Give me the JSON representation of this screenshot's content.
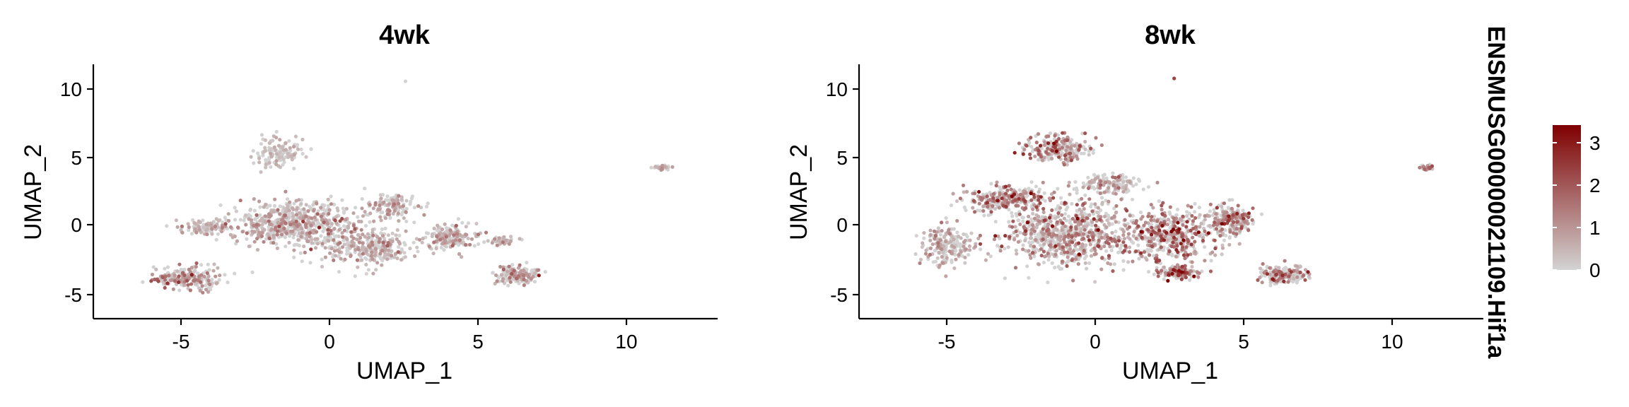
{
  "chart_data": [
    {
      "type": "scatter",
      "title": "4wk",
      "xlabel": "UMAP_1",
      "ylabel": "UMAP_2",
      "xlim": [
        -8.0,
        13.0
      ],
      "ylim": [
        -6.5,
        11.5
      ],
      "xticks": [
        "-5",
        "0",
        "5",
        "10"
      ],
      "yticks": [
        "-5",
        "0",
        "5",
        "10"
      ],
      "grid": false,
      "n_points": 1900,
      "seed": 11,
      "expr_scale": 0.8,
      "clusters": [
        {
          "cx": -1.2,
          "cy": 0.2,
          "sx": 1.9,
          "sy": 1.4,
          "w": 0.3,
          "expr": 0.9
        },
        {
          "cx": 1.3,
          "cy": -1.5,
          "sx": 1.3,
          "sy": 1.1,
          "w": 0.14,
          "expr": 0.8
        },
        {
          "cx": -4.8,
          "cy": -3.6,
          "sx": 1.0,
          "sy": 0.8,
          "w": 0.11,
          "expr": 1.1
        },
        {
          "cx": -4.2,
          "cy": 0.0,
          "sx": 0.8,
          "sy": 0.5,
          "w": 0.05,
          "expr": 0.6
        },
        {
          "cx": -1.7,
          "cy": 5.3,
          "sx": 0.8,
          "sy": 1.0,
          "w": 0.06,
          "expr": 0.3
        },
        {
          "cx": 4.0,
          "cy": -0.8,
          "sx": 0.8,
          "sy": 0.8,
          "w": 0.08,
          "expr": 0.8
        },
        {
          "cx": 6.3,
          "cy": -3.4,
          "sx": 0.7,
          "sy": 0.5,
          "w": 0.08,
          "expr": 1.0
        },
        {
          "cx": 2.0,
          "cy": 1.5,
          "sx": 0.8,
          "sy": 0.8,
          "w": 0.06,
          "expr": 0.8
        },
        {
          "cx": 5.8,
          "cy": -1.0,
          "sx": 0.4,
          "sy": 0.3,
          "w": 0.02,
          "expr": 0.5
        },
        {
          "cx": 11.1,
          "cy": 4.2,
          "sx": 0.2,
          "sy": 0.15,
          "w": 0.015,
          "expr": 0.7
        }
      ],
      "outliers": [
        [
          2.5,
          10.3,
          0.0
        ]
      ]
    },
    {
      "type": "scatter",
      "title": "8wk",
      "xlabel": "UMAP_1",
      "ylabel": "UMAP_2",
      "xlim": [
        -8.0,
        13.0
      ],
      "ylim": [
        -6.5,
        11.5
      ],
      "xticks": [
        "-5",
        "0",
        "5",
        "10"
      ],
      "yticks": [
        "-5",
        "0",
        "5",
        "10"
      ],
      "grid": false,
      "n_points": 2600,
      "seed": 29,
      "expr_scale": 1.1,
      "clusters": [
        {
          "cx": -1.0,
          "cy": -0.5,
          "sx": 2.2,
          "sy": 2.0,
          "w": 0.28,
          "expr": 1.0
        },
        {
          "cx": 2.5,
          "cy": -0.5,
          "sx": 1.3,
          "sy": 1.6,
          "w": 0.16,
          "expr": 1.2
        },
        {
          "cx": -1.3,
          "cy": 5.5,
          "sx": 1.0,
          "sy": 0.9,
          "w": 0.09,
          "expr": 1.2
        },
        {
          "cx": -3.0,
          "cy": 2.0,
          "sx": 1.3,
          "sy": 0.8,
          "w": 0.1,
          "expr": 1.0
        },
        {
          "cx": 4.5,
          "cy": 0.5,
          "sx": 0.7,
          "sy": 1.0,
          "w": 0.08,
          "expr": 1.1
        },
        {
          "cx": 6.3,
          "cy": -3.4,
          "sx": 0.7,
          "sy": 0.5,
          "w": 0.07,
          "expr": 1.1
        },
        {
          "cx": -5.0,
          "cy": -1.3,
          "sx": 0.8,
          "sy": 1.4,
          "w": 0.07,
          "expr": 0.5
        },
        {
          "cx": 2.8,
          "cy": -3.2,
          "sx": 0.6,
          "sy": 0.4,
          "w": 0.05,
          "expr": 1.6
        },
        {
          "cx": 0.5,
          "cy": 3.0,
          "sx": 0.9,
          "sy": 0.6,
          "w": 0.05,
          "expr": 0.8
        },
        {
          "cx": 11.1,
          "cy": 4.2,
          "sx": 0.2,
          "sy": 0.15,
          "w": 0.015,
          "expr": 1.0
        }
      ],
      "outliers": [
        [
          2.6,
          10.5,
          2.3
        ]
      ]
    }
  ],
  "legend": {
    "title": "ENSMUSG00000021109.Hif1a",
    "min": 0,
    "max": 3.4,
    "ticks": [
      "0",
      "1",
      "2",
      "3"
    ],
    "color_low": "#d3d3d3",
    "color_high": "#7f0000"
  }
}
